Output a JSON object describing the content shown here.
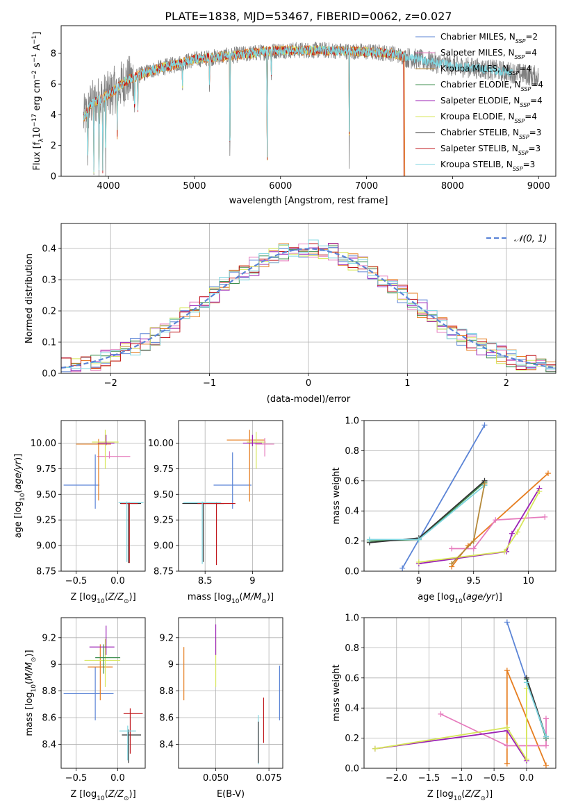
{
  "figure": {
    "title": "PLATE=1838, MJD=53467, FIBERID=0062, z=0.027"
  },
  "colors": {
    "Chabrier MILES": "#5b84d6",
    "Salpeter MILES": "#e67bbd",
    "Kroupa MILES": "#b5893a",
    "Chabrier ELODIE": "#3f8f4f",
    "Salpeter ELODIE": "#9b21b5",
    "Kroupa ELODIE": "#d7e65a",
    "Chabrier STELIB": "#333333",
    "Salpeter STELIB": "#c0171c",
    "Kroupa STELIB": "#7fd6e0",
    "data": "#808080",
    "orange": "#e67d1f",
    "cyan_model": "#7fd6e0"
  },
  "chart_data": [
    {
      "id": "spectrum",
      "type": "line",
      "xlabel": "wavelength [Angstrom, rest frame]",
      "ylabel": "Flux [f_λ 10^{-17} erg cm^{-2} s^{-1} A^{-1}]",
      "xlim": [
        3450,
        9200
      ],
      "ylim": [
        0,
        9.8
      ],
      "xticks": [
        4000,
        5000,
        6000,
        7000,
        8000,
        9000
      ],
      "yticks": [
        0,
        2,
        4,
        6,
        8
      ],
      "legend_position": "top-right",
      "legend": [
        {
          "name": "Chabrier MILES",
          "nssp": "2"
        },
        {
          "name": "Salpeter MILES",
          "nssp": "4"
        },
        {
          "name": "Kroupa MILES",
          "nssp": "4"
        },
        {
          "name": "Chabrier ELODIE",
          "nssp": "4"
        },
        {
          "name": "Salpeter ELODIE",
          "nssp": "4"
        },
        {
          "name": "Kroupa ELODIE",
          "nssp": "4"
        },
        {
          "name": "Chabrier STELIB",
          "nssp": "3"
        },
        {
          "name": "Salpeter STELIB",
          "nssp": "3"
        },
        {
          "name": "Kroupa STELIB",
          "nssp": "3"
        }
      ],
      "continuum": {
        "x": [
          3700,
          3800,
          3900,
          4000,
          4200,
          4500,
          5000,
          5500,
          6000,
          6500,
          7000,
          7300,
          7420,
          7600,
          8000,
          8500,
          9000
        ],
        "y": [
          3.6,
          4.7,
          5.0,
          5.3,
          6.2,
          6.9,
          7.6,
          7.9,
          8.2,
          8.2,
          8.1,
          8.0,
          7.8,
          7.6,
          7.2,
          6.9,
          6.5
        ]
      },
      "absorption_lines": [
        {
          "x": 3760,
          "depth": 3.9
        },
        {
          "x": 3830,
          "depth": 4.5
        },
        {
          "x": 3890,
          "depth": 4.4
        },
        {
          "x": 3934,
          "depth": 4.8
        },
        {
          "x": 3968,
          "depth": 4.6
        },
        {
          "x": 4102,
          "depth": 3.0
        },
        {
          "x": 4304,
          "depth": 2.5
        },
        {
          "x": 4341,
          "depth": 2.5
        },
        {
          "x": 4861,
          "depth": 1.8
        },
        {
          "x": 5175,
          "depth": 2.0
        },
        {
          "x": 5412,
          "depth": 8.0
        },
        {
          "x": 5845,
          "depth": 8.2
        },
        {
          "x": 5893,
          "depth": 2.0
        },
        {
          "x": 6800,
          "depth": 8.1
        }
      ]
    },
    {
      "id": "residuals",
      "type": "area",
      "xlabel": "(data-model)/error",
      "ylabel": "Normed distribution",
      "xlim": [
        -2.5,
        2.5
      ],
      "ylim": [
        0,
        0.48
      ],
      "xticks": [
        -2,
        -1,
        0,
        1,
        2
      ],
      "yticks": [
        0.0,
        0.1,
        0.2,
        0.3,
        0.4
      ],
      "grid": true,
      "legend": [
        {
          "name": "𝒩(0, 1)",
          "style": "dashed",
          "color": "#5b84d6"
        }
      ],
      "legend_position": "top-right",
      "bin_width": 0.1,
      "gaussian": {
        "mean": 0,
        "sigma": 1
      }
    },
    {
      "id": "z_age",
      "type": "scatter",
      "xlabel": "Z [log10(Z/Z⊙)]",
      "ylabel": "age  [log10(age/yr)]",
      "xlim": [
        -0.68,
        0.33
      ],
      "ylim": [
        8.75,
        10.22
      ],
      "xticks": [
        -0.5,
        0.0
      ],
      "xticklabels": [
        "−0.5",
        "0.0"
      ],
      "yticks": [
        8.75,
        9.0,
        9.25,
        9.5,
        9.75,
        10.0
      ],
      "yticklabels": [
        "8.75",
        "9.00",
        "9.25",
        "9.50",
        "9.75",
        "10.00"
      ],
      "grid": true,
      "points": [
        {
          "series": "Chabrier MILES",
          "x": -0.27,
          "y": 9.59,
          "xerr": [
            0.38,
            0.05
          ],
          "yerr": [
            0.23,
            0.3
          ]
        },
        {
          "series": "Salpeter MILES",
          "x": -0.1,
          "y": 9.87,
          "xerr": [
            0.15,
            0.25
          ],
          "yerr": [
            0.02,
            0.05
          ]
        },
        {
          "series": "orange",
          "x": -0.23,
          "y": 9.99,
          "xerr": [
            0.27,
            0.15
          ],
          "yerr": [
            0.55,
            0.05
          ]
        },
        {
          "series": "Kroupa ELODIE",
          "x": -0.15,
          "y": 10.01,
          "xerr": [
            0.16,
            0.16
          ],
          "yerr": [
            0.26,
            0.12
          ]
        },
        {
          "series": "Salpeter ELODIE",
          "x": -0.14,
          "y": 10.0,
          "xerr": [
            0.1,
            0.1
          ],
          "yerr": [
            0.02,
            0.08
          ]
        },
        {
          "series": "Chabrier STELIB",
          "x": 0.13,
          "y": 9.41,
          "xerr": [
            0.1,
            0.15
          ],
          "yerr": [
            0.58,
            0.01
          ]
        },
        {
          "series": "Salpeter STELIB",
          "x": 0.14,
          "y": 9.41,
          "xerr": [
            0.1,
            0.1
          ],
          "yerr": [
            0.58,
            0.01
          ]
        },
        {
          "series": "Kroupa STELIB",
          "x": 0.11,
          "y": 9.42,
          "xerr": [
            0.1,
            0.2
          ],
          "yerr": [
            0.58,
            0.01
          ]
        }
      ]
    },
    {
      "id": "mass_age",
      "type": "scatter",
      "xlabel": "mass [log10(M/M⊙)]",
      "ylabel": "",
      "xlim": [
        8.22,
        9.32
      ],
      "ylim": [
        8.75,
        10.22
      ],
      "xticks": [
        8.5,
        9.0
      ],
      "yticks": [
        8.75,
        9.0,
        9.25,
        9.5,
        9.75,
        10.0
      ],
      "yticklabels": [
        "8.75",
        "9.00",
        "9.25",
        "9.50",
        "9.75",
        "10.00"
      ],
      "grid": true,
      "points": [
        {
          "series": "Chabrier MILES",
          "x": 8.79,
          "y": 9.59,
          "xerr": [
            0.2,
            0.2
          ],
          "yerr": [
            0.23,
            0.32
          ]
        },
        {
          "series": "orange",
          "x": 8.97,
          "y": 10.03,
          "xerr": [
            0.24,
            0.16
          ],
          "yerr": [
            0.6,
            0.1
          ]
        },
        {
          "series": "Kroupa ELODIE",
          "x": 9.04,
          "y": 10.01,
          "xerr": [
            0.1,
            0.1
          ],
          "yerr": [
            0.26,
            0.1
          ]
        },
        {
          "series": "Salpeter ELODIE",
          "x": 9.0,
          "y": 10.0,
          "xerr": [
            0.1,
            0.1
          ],
          "yerr": [
            0.03,
            0.08
          ]
        },
        {
          "series": "Salpeter MILES",
          "x": 9.13,
          "y": 9.99,
          "xerr": [
            0.1,
            0.1
          ],
          "yerr": [
            0.12,
            0.06
          ]
        },
        {
          "series": "Chabrier STELIB",
          "x": 8.48,
          "y": 9.41,
          "xerr": [
            0.22,
            0.22
          ],
          "yerr": [
            0.57,
            0.01
          ]
        },
        {
          "series": "Salpeter STELIB",
          "x": 8.62,
          "y": 9.41,
          "xerr": [
            0.2,
            0.2
          ],
          "yerr": [
            0.6,
            0.01
          ]
        },
        {
          "series": "Kroupa STELIB",
          "x": 8.47,
          "y": 9.42,
          "xerr": [
            0.2,
            0.2
          ],
          "yerr": [
            0.6,
            0.01
          ]
        }
      ]
    },
    {
      "id": "age_weight",
      "type": "line",
      "xlabel": "age  [log10(age/yr)]",
      "ylabel": "mass weight",
      "xlim": [
        8.5,
        10.25
      ],
      "ylim": [
        0,
        1.0
      ],
      "xticks": [
        9.0,
        9.5,
        10.0
      ],
      "yticks": [
        0.0,
        0.2,
        0.4,
        0.6,
        0.8,
        1.0
      ],
      "grid": true,
      "series": [
        {
          "name": "Chabrier MILES",
          "x": [
            8.85,
            9.6
          ],
          "y": [
            0.02,
            0.97
          ]
        },
        {
          "name": "Chabrier ELODIE",
          "x": [
            8.55,
            9.0,
            9.6
          ],
          "y": [
            0.2,
            0.21,
            0.59
          ]
        },
        {
          "name": "Chabrier STELIB",
          "x": [
            8.55,
            9.0,
            9.6
          ],
          "y": [
            0.19,
            0.22,
            0.6
          ]
        },
        {
          "name": "Kroupa STELIB",
          "x": [
            8.55,
            9.0,
            9.6
          ],
          "y": [
            0.21,
            0.21,
            0.57
          ]
        },
        {
          "name": "orange",
          "x": [
            9.3,
            9.45,
            10.18
          ],
          "y": [
            0.03,
            0.17,
            0.65
          ]
        },
        {
          "name": "Salpeter MILES",
          "x": [
            9.3,
            9.5,
            9.7,
            10.15
          ],
          "y": [
            0.15,
            0.15,
            0.34,
            0.36
          ]
        },
        {
          "name": "Salpeter ELODIE",
          "x": [
            9.0,
            9.8,
            9.85,
            10.1
          ],
          "y": [
            0.05,
            0.13,
            0.25,
            0.55
          ]
        },
        {
          "name": "Kroupa ELODIE",
          "x": [
            9.0,
            9.78,
            9.9,
            10.1
          ],
          "y": [
            0.06,
            0.13,
            0.26,
            0.53
          ]
        },
        {
          "name": "Kroupa MILES",
          "x": [
            9.3,
            9.5,
            9.6
          ],
          "y": [
            0.05,
            0.2,
            0.58
          ]
        }
      ]
    },
    {
      "id": "z_mass",
      "type": "scatter",
      "xlabel": "Z [log10(Z/Z⊙)]",
      "ylabel": "mass [log10(M/M⊙)]",
      "xlim": [
        -0.68,
        0.33
      ],
      "ylim": [
        8.22,
        9.35
      ],
      "xticks": [
        -0.5,
        0.0
      ],
      "xticklabels": [
        "−0.5",
        "0.0"
      ],
      "yticks": [
        8.4,
        8.6,
        8.8,
        9.0,
        9.2
      ],
      "grid": true,
      "points": [
        {
          "series": "Chabrier MILES",
          "x": -0.27,
          "y": 8.78,
          "xerr": [
            0.38,
            0.22
          ],
          "yerr": [
            0.2,
            0.2
          ]
        },
        {
          "series": "orange",
          "x": -0.21,
          "y": 8.98,
          "xerr": [
            0.15,
            0.15
          ],
          "yerr": [
            0.25,
            0.17
          ]
        },
        {
          "series": "Kroupa ELODIE",
          "x": -0.15,
          "y": 9.03,
          "xerr": [
            0.25,
            0.18
          ],
          "yerr": [
            0.2,
            0.16
          ]
        },
        {
          "series": "Salpeter ELODIE",
          "x": -0.14,
          "y": 9.13,
          "xerr": [
            0.2,
            0.1
          ],
          "yerr": [
            0.06,
            0.16
          ]
        },
        {
          "series": "Chabrier ELODIE",
          "x": -0.17,
          "y": 9.05,
          "xerr": [
            0.1,
            0.2
          ],
          "yerr": [
            0.12,
            0.1
          ]
        },
        {
          "series": "Chabrier STELIB",
          "x": 0.13,
          "y": 8.47,
          "xerr": [
            0.08,
            0.15
          ],
          "yerr": [
            0.21,
            0.04
          ]
        },
        {
          "series": "Salpeter STELIB",
          "x": 0.15,
          "y": 8.63,
          "xerr": [
            0.08,
            0.15
          ],
          "yerr": [
            0.3,
            0.04
          ]
        },
        {
          "series": "Kroupa STELIB",
          "x": 0.12,
          "y": 8.5,
          "xerr": [
            0.1,
            0.1
          ],
          "yerr": [
            0.22,
            0.04
          ]
        }
      ]
    },
    {
      "id": "ebv_mass",
      "type": "scatter",
      "xlabel": "E(B-V)",
      "ylabel": "",
      "xlim": [
        0.0325,
        0.0815
      ],
      "ylim": [
        8.22,
        9.35
      ],
      "xticks": [
        0.05,
        0.075
      ],
      "xticklabels": [
        "0.050",
        "0.075"
      ],
      "yticks": [
        8.4,
        8.6,
        8.8,
        9.0,
        9.2
      ],
      "grid": true,
      "points": [
        {
          "series": "orange",
          "x": 0.035,
          "y": 8.97,
          "yerr": [
            0.24,
            0.16
          ]
        },
        {
          "series": "Kroupa ELODIE",
          "x": 0.05,
          "y": 9.03,
          "yerr": [
            0.2,
            0.17
          ]
        },
        {
          "series": "Salpeter ELODIE",
          "x": 0.05,
          "y": 9.13,
          "yerr": [
            0.06,
            0.17
          ]
        },
        {
          "series": "Kroupa STELIB",
          "x": 0.07,
          "y": 8.45,
          "yerr": [
            0.2,
            0.17
          ]
        },
        {
          "series": "Chabrier STELIB",
          "x": 0.07,
          "y": 8.47,
          "yerr": [
            0.21,
            0.1
          ]
        },
        {
          "series": "Salpeter STELIB",
          "x": 0.0725,
          "y": 8.63,
          "yerr": [
            0.22,
            0.12
          ]
        },
        {
          "series": "Chabrier MILES",
          "x": 0.08,
          "y": 8.78,
          "yerr": [
            0.2,
            0.21
          ]
        }
      ]
    },
    {
      "id": "z_weight",
      "type": "line",
      "xlabel": "Z [log10(Z/Z⊙)]",
      "ylabel": "mass weight",
      "xlim": [
        -2.5,
        0.45
      ],
      "ylim": [
        0,
        1.0
      ],
      "xticks": [
        -2.0,
        -1.5,
        -1.0,
        -0.5,
        0.0
      ],
      "xticklabels": [
        "−2.0",
        "−1.5",
        "−1.0",
        "−0.5",
        "0.0"
      ],
      "yticks": [
        0.0,
        0.2,
        0.4,
        0.6,
        0.8,
        1.0
      ],
      "grid": true,
      "series": [
        {
          "name": "Chabrier MILES",
          "x": [
            -0.3,
            0.3
          ],
          "y": [
            0.97,
            0.2
          ]
        },
        {
          "name": "orange",
          "x": [
            -0.3,
            -0.3,
            0.3
          ],
          "y": [
            0.03,
            0.65,
            0.02
          ]
        },
        {
          "name": "Salpeter MILES",
          "x": [
            -1.32,
            -0.3,
            0.3,
            0.3
          ],
          "y": [
            0.36,
            0.15,
            0.15,
            0.33
          ]
        },
        {
          "name": "Salpeter ELODIE",
          "x": [
            -2.33,
            -0.3,
            0.0
          ],
          "y": [
            0.13,
            0.25,
            0.05
          ]
        },
        {
          "name": "Kroupa ELODIE",
          "x": [
            -2.33,
            -0.3,
            0.0,
            0.0
          ],
          "y": [
            0.13,
            0.27,
            0.06,
            0.53
          ]
        },
        {
          "name": "Chabrier ELODIE",
          "x": [
            0.0,
            0.3
          ],
          "y": [
            0.59,
            0.2
          ]
        },
        {
          "name": "Chabrier STELIB",
          "x": [
            0.0,
            0.3
          ],
          "y": [
            0.6,
            0.21
          ]
        },
        {
          "name": "Kroupa STELIB",
          "x": [
            0.0,
            0.3
          ],
          "y": [
            0.57,
            0.21
          ]
        }
      ]
    }
  ]
}
